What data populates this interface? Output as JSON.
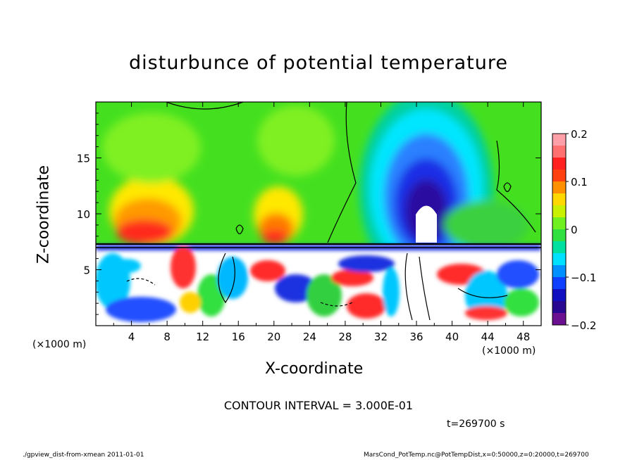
{
  "chart_data": {
    "type": "heatmap",
    "title": "disturbunce of potential temperature",
    "xlabel": "X-coordinate",
    "ylabel": "Z-coordinate",
    "x_unit": "(×1000 m)",
    "xlim": [
      0,
      50
    ],
    "ylim": [
      0,
      20
    ],
    "x_ticks": [
      4,
      8,
      12,
      16,
      20,
      24,
      28,
      32,
      36,
      40,
      44,
      48
    ],
    "x_tick_labels": [
      "4",
      "8",
      "12",
      "16",
      "20",
      "24",
      "28",
      "32",
      "36",
      "40",
      "44",
      "48"
    ],
    "y_ticks": [
      5,
      10,
      15
    ],
    "y_tick_labels": [
      "5",
      "10",
      "15"
    ],
    "colorbar": {
      "range": [
        -0.2,
        0.2
      ],
      "ticks": [
        0.2,
        0.1,
        0,
        -0.1,
        -0.2
      ],
      "tick_labels": [
        "0.2",
        "0.1",
        "0",
        "−0.1",
        "−0.2"
      ]
    },
    "contour_interval_text": "CONTOUR INTERVAL = 3.000E-01",
    "time_text": "t=269700 s"
  },
  "footer": {
    "left": "./gpview_dist-from-xmean   2011-01-01",
    "right": "MarsCond_PotTemp.nc@PotTempDist,x=0:50000,z=0:20000,t=269700"
  }
}
